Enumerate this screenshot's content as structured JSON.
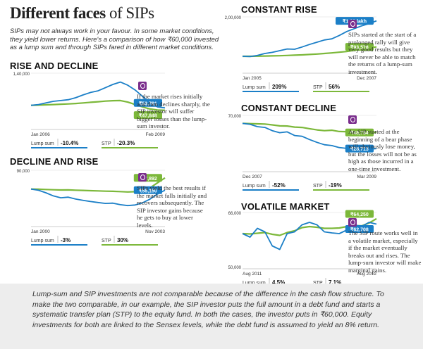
{
  "header": {
    "title_bold": "Different faces",
    "title_rest": " of SIPs",
    "intro": "SIPs may not always work in your favour. In some market conditions, they yield lower returns. Here's a comparison of how ₹60,000 invested as a lump sum and through SIPs fared in different market conditions."
  },
  "colors": {
    "lump_sum": "#1b7fc7",
    "stp": "#7cb83a",
    "icon": "#7a2d8c",
    "footer_bg": "#ededed"
  },
  "icons": {
    "note_icon": "info-icon"
  },
  "panels": [
    {
      "id": "rise-decline",
      "title": "RISE AND DECLINE",
      "note": "If the market rises initially and then declines sharply, the SIP investor will suffer bigger losses than the lump-sum investor.",
      "y_top_label": "1,40,000",
      "x_start_label": "Jan 2006",
      "x_end_label": "Feb 2009",
      "lump_label": "Lump sum",
      "lump_value": "-10.4%",
      "stp_label": "STP",
      "stp_value": "-20.3%",
      "callout_lump": "₹53,781",
      "callout_stp": "₹47,848"
    },
    {
      "id": "decline-rise",
      "title": "DECLINE AND RISE",
      "note": "SIPs yield the best results if the market falls initially and recovers subsequently. The SIP investor gains because he gets to buy at lower levels.",
      "y_top_label": "90,000",
      "x_start_label": "Jan 2000",
      "x_end_label": "Nov 2003",
      "lump_label": "Lump sum",
      "lump_value": "-3%",
      "stp_label": "STP",
      "stp_value": "30%",
      "callout_lump": "₹58,150",
      "callout_stp": "₹77,892"
    },
    {
      "id": "constant-rise",
      "title": "CONSTANT RISE",
      "note": "SIPs started at the start of a prolonged rally will give very good results but they will never be able to match the returns of a lump-sum investment.",
      "y_top_label": "2,00,000",
      "x_start_label": "Jan 2005",
      "x_end_label": "Dec 2007",
      "lump_label": "Lump sum",
      "lump_value": "209%",
      "stp_label": "STP",
      "stp_value": "56%",
      "callout_lump": "₹1.86 lakh",
      "callout_stp": "₹93,578"
    },
    {
      "id": "constant-decline",
      "title": "CONSTANT DECLINE",
      "note": "An SIP started at the beginning of a bear phase will obviously lose money, but the losses will not be as high as those incurred in a one-time investment.",
      "y_top_label": "70,000",
      "x_start_label": "Dec 2007",
      "x_end_label": "Mar 2009",
      "lump_label": "Lump sum",
      "lump_value": "-52%",
      "stp_label": "STP",
      "stp_value": "-19%",
      "callout_lump": "₹28,713",
      "callout_stp": "₹48,784"
    },
    {
      "id": "volatile-market",
      "title": "VOLATILE MARKET",
      "note": "The SIP route works well in a volatile market, especially if the market eventually breaks out and rises. The lump-sum investor will make marginal gains.",
      "y_top_label": "66,000",
      "y_bottom_label": "50,000",
      "x_start_label": "Aug 2011",
      "x_end_label": "Aug 2012",
      "lump_label": "Lump sum",
      "lump_value": "4.5%",
      "stp_label": "STP",
      "stp_value": "7.1%",
      "callout_lump": "₹62,708",
      "callout_stp": "₹64,250"
    }
  ],
  "footer": {
    "text": "Lump-sum and SIP investments are not comparable because of the difference in the cash flow structure. To make the two comparable, in our example, the SIP investor puts the full amount in a debt fund and starts a systematic transfer plan (STP) to the equity fund. In both the cases, the investor puts in ₹60,000. Equity investments for both are linked to the Sensex levels, while the debt fund is assumed to yield an 8% return."
  },
  "chart_data": [
    {
      "type": "line",
      "title": "RISE AND DECLINE",
      "x": [
        "Jan 2006",
        "",
        "",
        "",
        "",
        "",
        "",
        "",
        "",
        "",
        "",
        "",
        "",
        "",
        "",
        "",
        "",
        "",
        "Feb 2009"
      ],
      "ylim": [
        0,
        140000
      ],
      "series": [
        {
          "name": "Lump sum",
          "values": [
            60000,
            62000,
            66000,
            70000,
            72000,
            74000,
            79000,
            86000,
            92000,
            96000,
            104000,
            112000,
            118000,
            110000,
            98000,
            82000,
            66000,
            56000,
            53781
          ]
        },
        {
          "name": "STP",
          "values": [
            60000,
            60500,
            61200,
            62000,
            62800,
            63500,
            64500,
            66000,
            67500,
            69000,
            70500,
            71500,
            72000,
            68000,
            62000,
            56000,
            51000,
            48500,
            47848
          ]
        }
      ]
    },
    {
      "type": "line",
      "title": "DECLINE AND RISE",
      "x": [
        "Jan 2000",
        "",
        "",
        "",
        "",
        "",
        "",
        "",
        "",
        "",
        "",
        "",
        "",
        "",
        "",
        "",
        "",
        "",
        "Nov 2003"
      ],
      "ylim": [
        0,
        90000
      ],
      "series": [
        {
          "name": "Lump sum",
          "values": [
            60000,
            58000,
            54000,
            49000,
            46000,
            47000,
            44000,
            42000,
            40000,
            38500,
            37000,
            37500,
            35000,
            33500,
            34500,
            38000,
            44000,
            52000,
            58150
          ]
        },
        {
          "name": "STP",
          "values": [
            60000,
            59800,
            59300,
            58800,
            58500,
            58600,
            58200,
            57800,
            57400,
            57000,
            56600,
            56400,
            55900,
            55400,
            55800,
            57500,
            62000,
            70000,
            77892
          ]
        }
      ]
    },
    {
      "type": "line",
      "title": "CONSTANT RISE",
      "x": [
        "Jan 2005",
        "",
        "",
        "",
        "",
        "",
        "",
        "",
        "",
        "",
        "",
        "",
        "",
        "",
        "",
        "",
        "",
        "",
        "Dec 2007"
      ],
      "ylim": [
        0,
        200000
      ],
      "series": [
        {
          "name": "Lump sum",
          "values": [
            60000,
            59000,
            63000,
            70000,
            74000,
            80000,
            86000,
            85000,
            93000,
            102000,
            110000,
            118000,
            122000,
            134000,
            148000,
            158000,
            168000,
            176000,
            186000
          ]
        },
        {
          "name": "STP",
          "values": [
            60000,
            60000,
            60500,
            61000,
            61500,
            62000,
            63000,
            64000,
            65000,
            66500,
            68000,
            70000,
            72000,
            74500,
            77000,
            81000,
            85000,
            89000,
            93578
          ]
        }
      ]
    },
    {
      "type": "line",
      "title": "CONSTANT DECLINE",
      "x": [
        "Dec 2007",
        "",
        "",
        "",
        "",
        "",
        "",
        "",
        "",
        "",
        "",
        "",
        "",
        "",
        "",
        "",
        "",
        "",
        "Mar 2009"
      ],
      "ylim": [
        0,
        70000
      ],
      "series": [
        {
          "name": "Lump sum",
          "values": [
            60000,
            59000,
            56000,
            55000,
            51000,
            48500,
            49500,
            45000,
            44000,
            40000,
            36500,
            33500,
            32500,
            30000,
            29000,
            27500,
            26500,
            28000,
            28713
          ]
        },
        {
          "name": "STP",
          "values": [
            60000,
            59800,
            59500,
            59200,
            58200,
            57000,
            56800,
            55500,
            55000,
            53500,
            52000,
            51000,
            51500,
            50000,
            49800,
            49000,
            48500,
            49000,
            48784
          ]
        }
      ]
    },
    {
      "type": "line",
      "title": "VOLATILE MARKET",
      "x": [
        "Aug 2011",
        "",
        "",
        "",
        "",
        "",
        "",
        "",
        "",
        "",
        "",
        "",
        "",
        "",
        "",
        "",
        "",
        "",
        "Aug 2012"
      ],
      "ylim": [
        50000,
        66000
      ],
      "series": [
        {
          "name": "Lump sum",
          "values": [
            60000,
            59000,
            61500,
            60500,
            56500,
            55500,
            60000,
            60500,
            62500,
            63200,
            62500,
            60500,
            60200,
            60000,
            61000,
            62500,
            62000,
            63200,
            62708
          ]
        },
        {
          "name": "STP",
          "values": [
            60000,
            59900,
            60100,
            60300,
            59800,
            59500,
            60300,
            60800,
            61700,
            62000,
            61800,
            61500,
            61500,
            61600,
            62000,
            62300,
            62200,
            63000,
            64250
          ]
        }
      ]
    }
  ]
}
